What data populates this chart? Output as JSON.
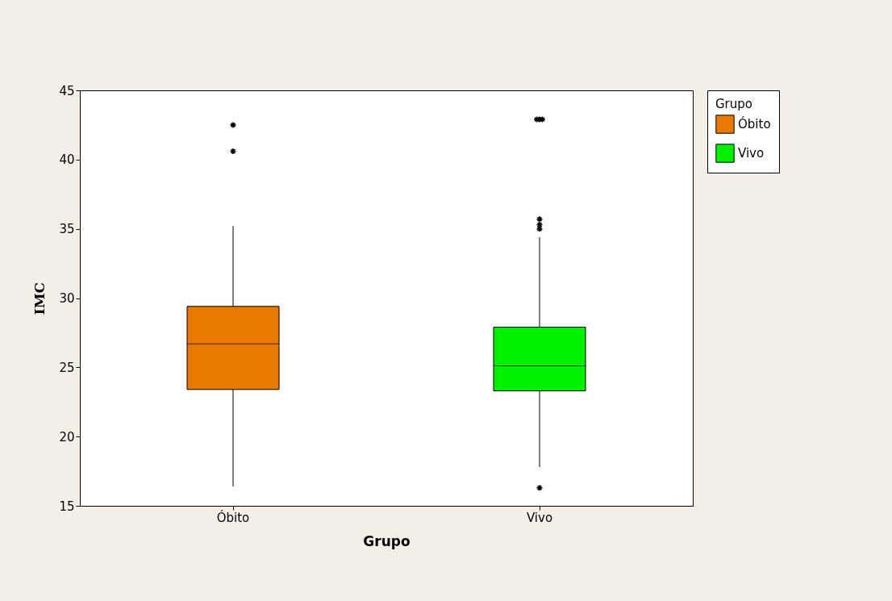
{
  "chart_data": {
    "type": "box",
    "xlabel": "Grupo",
    "ylabel": "IMC",
    "legend_title": "Grupo",
    "legend": "top right",
    "categories": [
      "Óbito",
      "Vivo"
    ],
    "series": [
      {
        "name": "Óbito",
        "color": "#e87800",
        "boxes": [
          {
            "low": 16.4,
            "q1": 23.4,
            "median": 26.7,
            "q3": 29.4,
            "high": 35.2,
            "outliers": [
              40.6,
              42.5
            ]
          },
          null
        ]
      },
      {
        "name": "Vivo",
        "color": "#00f000",
        "boxes": [
          null,
          {
            "low": 17.8,
            "q1": 23.3,
            "median": 25.1,
            "q3": 27.9,
            "high": 34.4,
            "outliers": [
              16.3,
              35.0,
              35.3,
              35.7,
              42.9,
              42.9,
              42.9
            ]
          }
        ]
      }
    ],
    "ylim": [
      15,
      45
    ],
    "yticks": [
      15,
      20,
      25,
      30,
      35,
      40,
      45
    ]
  }
}
